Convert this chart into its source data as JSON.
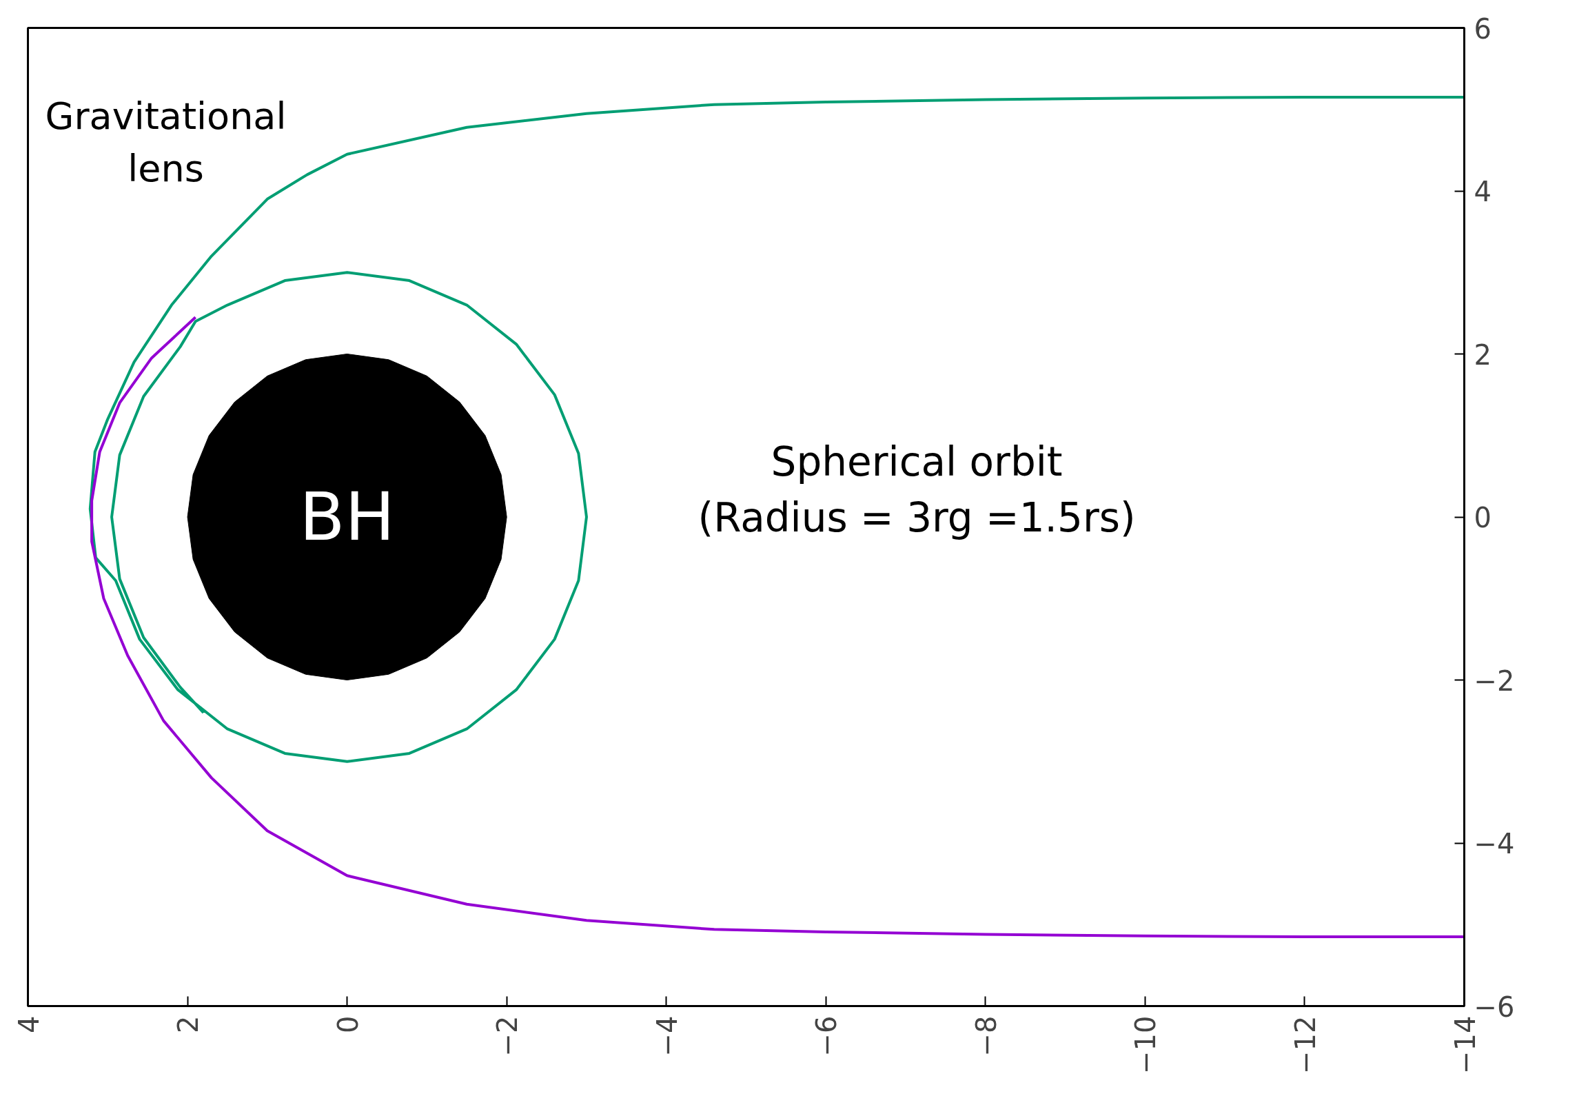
{
  "chart_data": {
    "type": "line",
    "xlim": [
      4,
      -14
    ],
    "ylim": [
      -6,
      6
    ],
    "xticks": [
      4,
      2,
      0,
      -2,
      -4,
      -6,
      -8,
      -10,
      -12,
      -14
    ],
    "yticks": [
      -6,
      -4,
      -2,
      0,
      2,
      4,
      6
    ],
    "grid": false,
    "series": [
      {
        "type": "area",
        "color": "#000000",
        "x": [
          2,
          1.93,
          1.73,
          1.41,
          1,
          0.52,
          0,
          -0.52,
          -1,
          -1.41,
          -1.73,
          -1.93,
          -2,
          -1.93,
          -1.73,
          -1.41,
          -1,
          -0.52,
          0,
          0.52,
          1,
          1.41,
          1.73,
          1.93
        ],
        "values": [
          0,
          0.52,
          1,
          1.41,
          1.73,
          1.93,
          2,
          1.93,
          1.73,
          1.41,
          1,
          0.52,
          0,
          -0.52,
          -1,
          -1.41,
          -1.73,
          -1.93,
          -2,
          -1.93,
          -1.73,
          -1.41,
          -1,
          -0.52
        ]
      },
      {
        "color": "#009e73",
        "x": [
          -14,
          -12,
          -10,
          -8,
          -6,
          -4.6,
          -3,
          -1.5,
          0,
          0.5,
          1,
          1.7,
          2.2,
          2.67,
          3.0,
          3.16,
          3.22,
          3.15,
          2.9,
          2.6,
          2.12,
          1.5,
          0.78,
          0,
          -0.78,
          -1.5,
          -2.12,
          -2.6,
          -2.9,
          -3,
          -2.9,
          -2.6,
          -2.12,
          -1.5,
          -0.78,
          0,
          0.78,
          1.5,
          1.9,
          2.09,
          2.55,
          2.85,
          2.95,
          2.85,
          2.55,
          2.09,
          1.8
        ],
        "values": [
          5.15,
          5.15,
          5.14,
          5.12,
          5.09,
          5.06,
          4.95,
          4.78,
          4.45,
          4.2,
          3.9,
          3.2,
          2.6,
          1.9,
          1.2,
          0.8,
          0.1,
          -0.5,
          -0.78,
          -1.5,
          -2.12,
          -2.6,
          -2.9,
          -3,
          -2.9,
          -2.6,
          -2.12,
          -1.5,
          -0.78,
          0,
          0.78,
          1.5,
          2.12,
          2.6,
          2.9,
          3,
          2.9,
          2.6,
          2.4,
          2.09,
          1.48,
          0.76,
          0,
          -0.76,
          -1.48,
          -2.09,
          -2.4
        ]
      },
      {
        "color": "#9400d3",
        "x": [
          -14,
          -12,
          -10,
          -8,
          -6,
          -4.6,
          -3,
          -1.5,
          0,
          1,
          1.7,
          2.3,
          2.75,
          3.05,
          3.2,
          3.2,
          3.1,
          2.85,
          2.45,
          1.9
        ],
        "values": [
          -5.15,
          -5.15,
          -5.14,
          -5.12,
          -5.09,
          -5.06,
          -4.95,
          -4.75,
          -4.4,
          -3.85,
          -3.2,
          -2.5,
          -1.7,
          -1.0,
          -0.3,
          0.2,
          0.8,
          1.4,
          1.95,
          2.45
        ]
      }
    ],
    "annotations": [
      "BH",
      "Spherical orbit\n(Radius = 3rg =1.5rs)",
      "Gravitational\nlens"
    ]
  }
}
